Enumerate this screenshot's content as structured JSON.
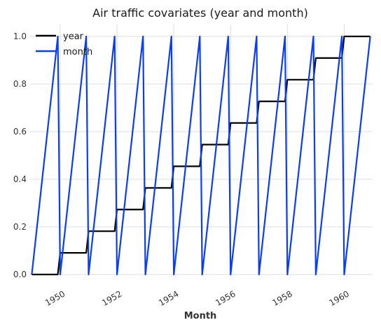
{
  "chart_data": {
    "type": "line",
    "title": "Air traffic covariates (year and month)",
    "xlabel": "Month",
    "ylabel": "",
    "xlim": [
      "1948-12",
      "1961-01"
    ],
    "ylim": [
      0.0,
      1.05
    ],
    "x_ticks": [
      "1950",
      "1952",
      "1954",
      "1956",
      "1958",
      "1960"
    ],
    "y_ticks": [
      "0.0",
      "0.2",
      "0.4",
      "0.6",
      "0.8",
      "1.0"
    ],
    "grid": true,
    "legend_position": "top-left",
    "series": [
      {
        "name": "year",
        "color": "#000000",
        "points": [
          [
            "1949-01",
            0.0
          ],
          [
            "1949-12",
            0.0
          ],
          [
            "1950-01",
            0.0909
          ],
          [
            "1950-12",
            0.0909
          ],
          [
            "1951-01",
            0.1818
          ],
          [
            "1951-12",
            0.1818
          ],
          [
            "1952-01",
            0.2727
          ],
          [
            "1952-12",
            0.2727
          ],
          [
            "1953-01",
            0.3636
          ],
          [
            "1953-12",
            0.3636
          ],
          [
            "1954-01",
            0.4545
          ],
          [
            "1954-12",
            0.4545
          ],
          [
            "1955-01",
            0.5455
          ],
          [
            "1955-12",
            0.5455
          ],
          [
            "1956-01",
            0.6364
          ],
          [
            "1956-12",
            0.6364
          ],
          [
            "1957-01",
            0.7273
          ],
          [
            "1957-12",
            0.7273
          ],
          [
            "1958-01",
            0.8182
          ],
          [
            "1958-12",
            0.8182
          ],
          [
            "1959-01",
            0.9091
          ],
          [
            "1959-12",
            0.9091
          ],
          [
            "1960-01",
            1.0
          ],
          [
            "1960-12",
            1.0
          ]
        ]
      },
      {
        "name": "month",
        "color": "#0b3ef0",
        "points": [
          [
            "1949-01",
            0.0
          ],
          [
            "1949-12",
            1.0
          ],
          [
            "1950-01",
            0.0
          ],
          [
            "1950-12",
            1.0
          ],
          [
            "1951-01",
            0.0
          ],
          [
            "1951-12",
            1.0
          ],
          [
            "1952-01",
            0.0
          ],
          [
            "1952-12",
            1.0
          ],
          [
            "1953-01",
            0.0
          ],
          [
            "1953-12",
            1.0
          ],
          [
            "1954-01",
            0.0
          ],
          [
            "1954-12",
            1.0
          ],
          [
            "1955-01",
            0.0
          ],
          [
            "1955-12",
            1.0
          ],
          [
            "1956-01",
            0.0
          ],
          [
            "1956-12",
            1.0
          ],
          [
            "1957-01",
            0.0
          ],
          [
            "1957-12",
            1.0
          ],
          [
            "1958-01",
            0.0
          ],
          [
            "1958-12",
            1.0
          ],
          [
            "1959-01",
            0.0
          ],
          [
            "1959-12",
            1.0
          ],
          [
            "1960-01",
            0.0
          ],
          [
            "1960-12",
            1.0
          ]
        ]
      }
    ]
  }
}
